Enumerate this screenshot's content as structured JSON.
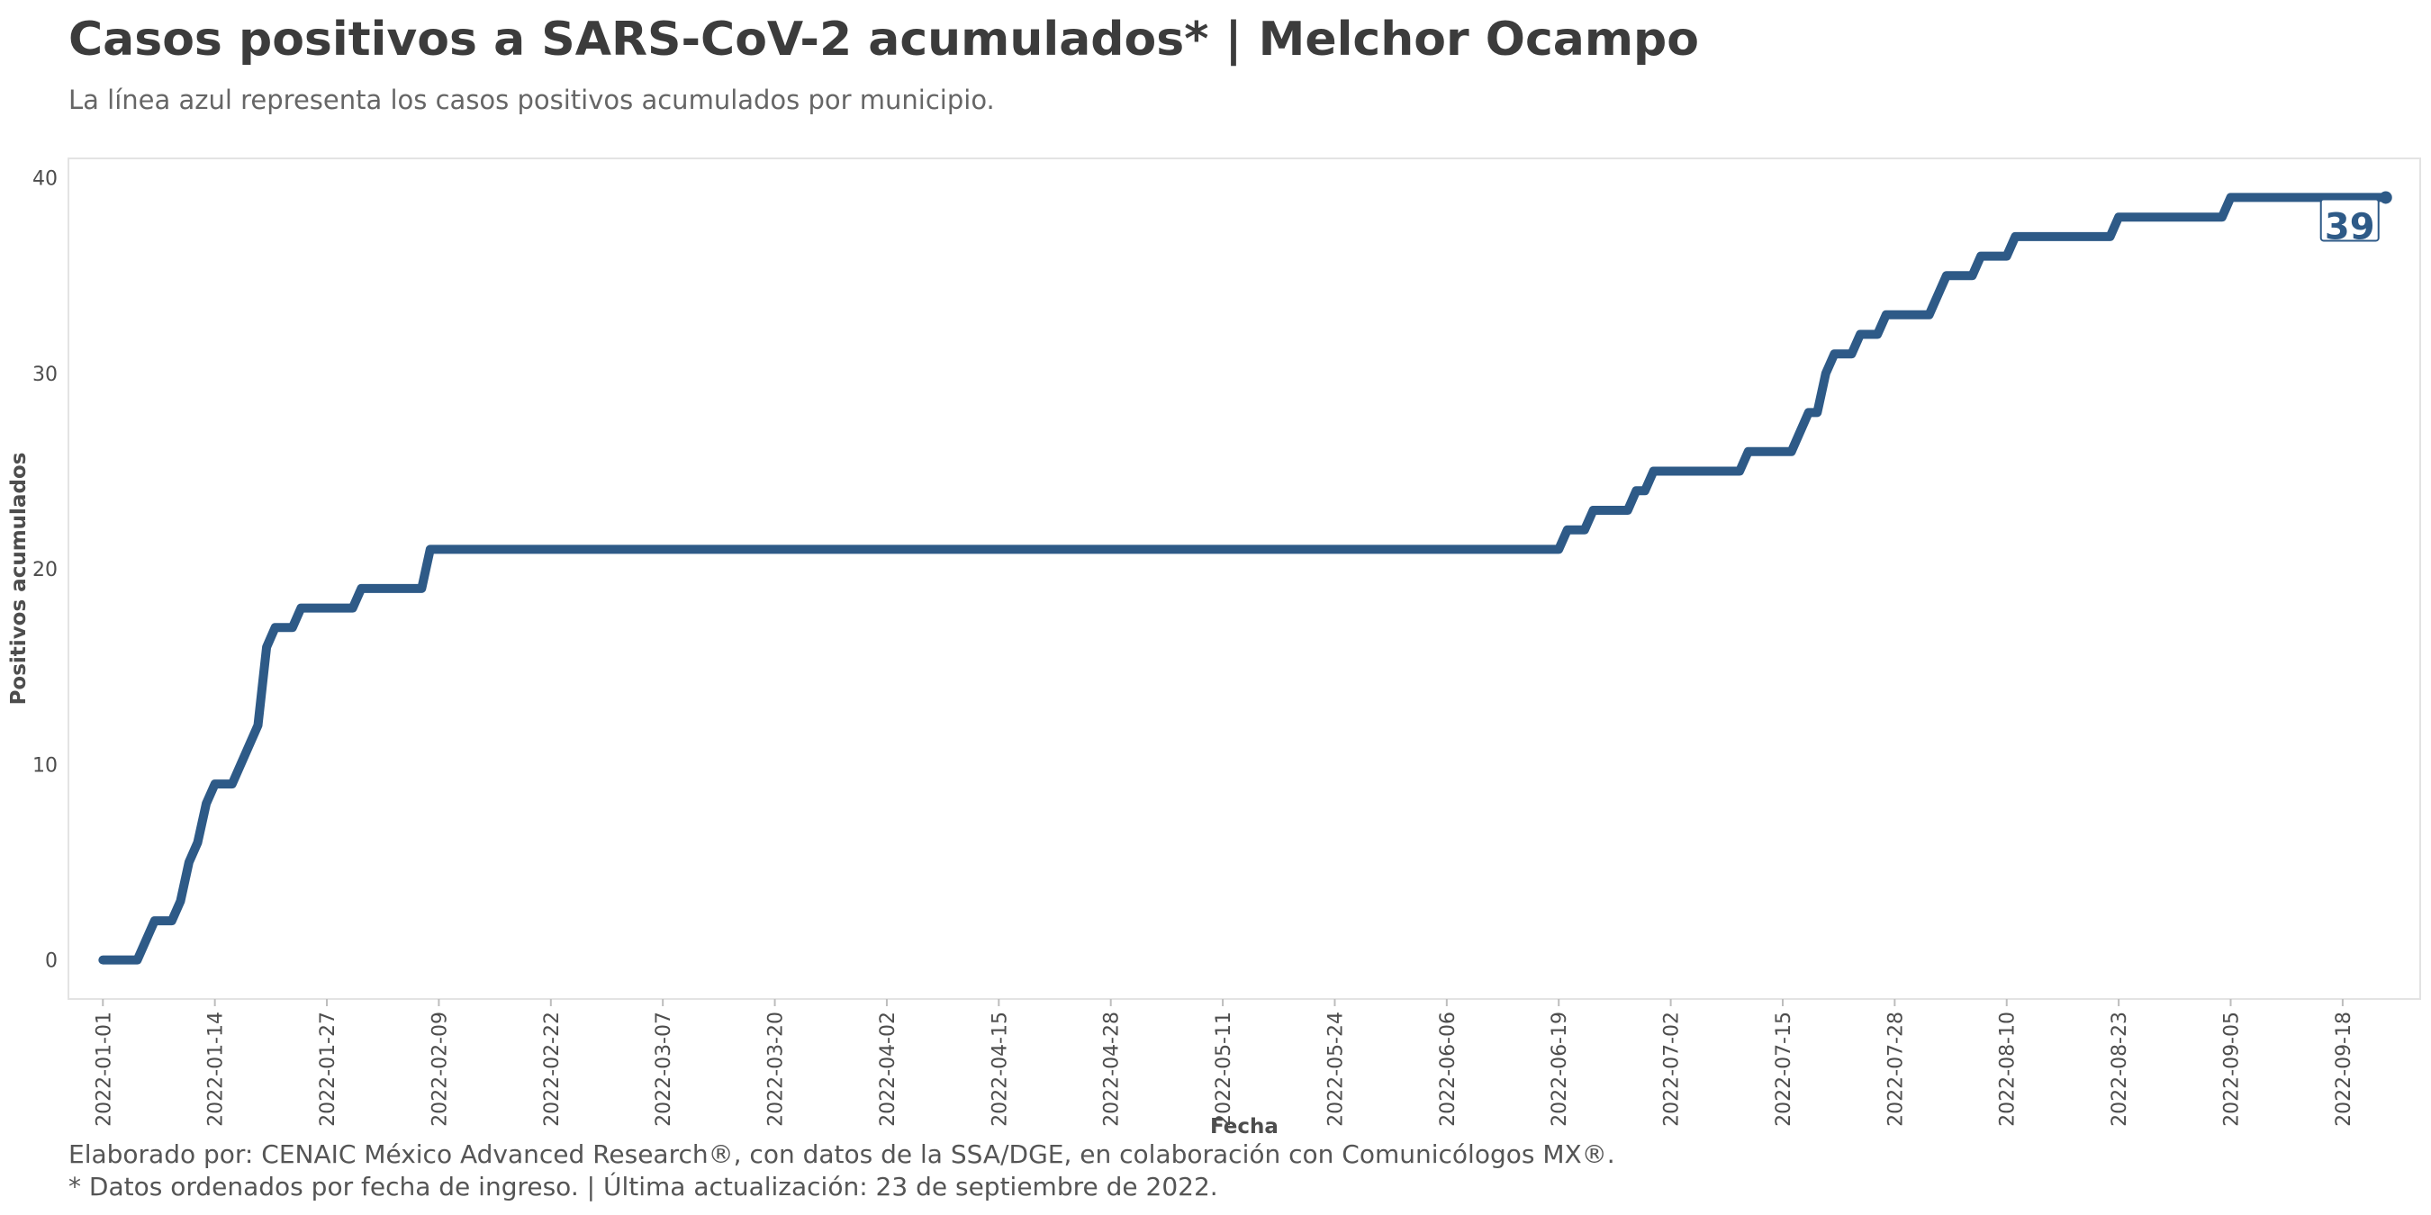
{
  "title": "Casos positivos a SARS-CoV-2 acumulados* | Melchor Ocampo",
  "subtitle": "La línea azul representa los casos positivos acumulados por municipio.",
  "caption": [
    "Elaborado por: CENAIC México Advanced Research®, con datos de la SSA/DGE, en colaboración con Comunicólogos MX®.",
    "* Datos ordenados por fecha de ingreso. | Última actualización: 23 de septiembre de 2022."
  ],
  "colors": {
    "line": "#2e5a87",
    "panel_border": "#e3e3e3",
    "axis_text": "#4d4d4d"
  },
  "chart_data": {
    "type": "line",
    "xlabel": "Fecha",
    "ylabel": "Positivos acumulados",
    "x_range": [
      "2021-12-28",
      "2022-09-27"
    ],
    "ylim": [
      -2,
      41
    ],
    "y_ticks": [
      0,
      10,
      20,
      30,
      40
    ],
    "x_ticks": [
      "2022-01-01",
      "2022-01-14",
      "2022-01-27",
      "2022-02-09",
      "2022-02-22",
      "2022-03-07",
      "2022-03-20",
      "2022-04-02",
      "2022-04-15",
      "2022-04-28",
      "2022-05-11",
      "2022-05-24",
      "2022-06-06",
      "2022-06-19",
      "2022-07-02",
      "2022-07-15",
      "2022-07-28",
      "2022-08-10",
      "2022-08-23",
      "2022-09-05",
      "2022-09-18"
    ],
    "grid": false,
    "legend": "none",
    "series": [
      {
        "end_label": "39",
        "points": [
          [
            "2022-01-01",
            0
          ],
          [
            "2022-01-05",
            0
          ],
          [
            "2022-01-07",
            2
          ],
          [
            "2022-01-09",
            2
          ],
          [
            "2022-01-10",
            3
          ],
          [
            "2022-01-11",
            5
          ],
          [
            "2022-01-12",
            6
          ],
          [
            "2022-01-13",
            8
          ],
          [
            "2022-01-14",
            9
          ],
          [
            "2022-01-16",
            9
          ],
          [
            "2022-01-19",
            12
          ],
          [
            "2022-01-20",
            16
          ],
          [
            "2022-01-21",
            17
          ],
          [
            "2022-01-23",
            17
          ],
          [
            "2022-01-24",
            18
          ],
          [
            "2022-01-30",
            18
          ],
          [
            "2022-01-31",
            19
          ],
          [
            "2022-02-07",
            19
          ],
          [
            "2022-02-08",
            21
          ],
          [
            "2022-06-19",
            21
          ],
          [
            "2022-06-20",
            22
          ],
          [
            "2022-06-22",
            22
          ],
          [
            "2022-06-23",
            23
          ],
          [
            "2022-06-27",
            23
          ],
          [
            "2022-06-28",
            24
          ],
          [
            "2022-06-29",
            24
          ],
          [
            "2022-06-30",
            25
          ],
          [
            "2022-07-10",
            25
          ],
          [
            "2022-07-11",
            26
          ],
          [
            "2022-07-16",
            26
          ],
          [
            "2022-07-18",
            28
          ],
          [
            "2022-07-19",
            28
          ],
          [
            "2022-07-20",
            30
          ],
          [
            "2022-07-21",
            31
          ],
          [
            "2022-07-23",
            31
          ],
          [
            "2022-07-24",
            32
          ],
          [
            "2022-07-26",
            32
          ],
          [
            "2022-07-27",
            33
          ],
          [
            "2022-08-01",
            33
          ],
          [
            "2022-08-03",
            35
          ],
          [
            "2022-08-06",
            35
          ],
          [
            "2022-08-07",
            36
          ],
          [
            "2022-08-10",
            36
          ],
          [
            "2022-08-11",
            37
          ],
          [
            "2022-08-22",
            37
          ],
          [
            "2022-08-23",
            38
          ],
          [
            "2022-09-04",
            38
          ],
          [
            "2022-09-05",
            39
          ],
          [
            "2022-09-23",
            39
          ]
        ]
      }
    ]
  }
}
